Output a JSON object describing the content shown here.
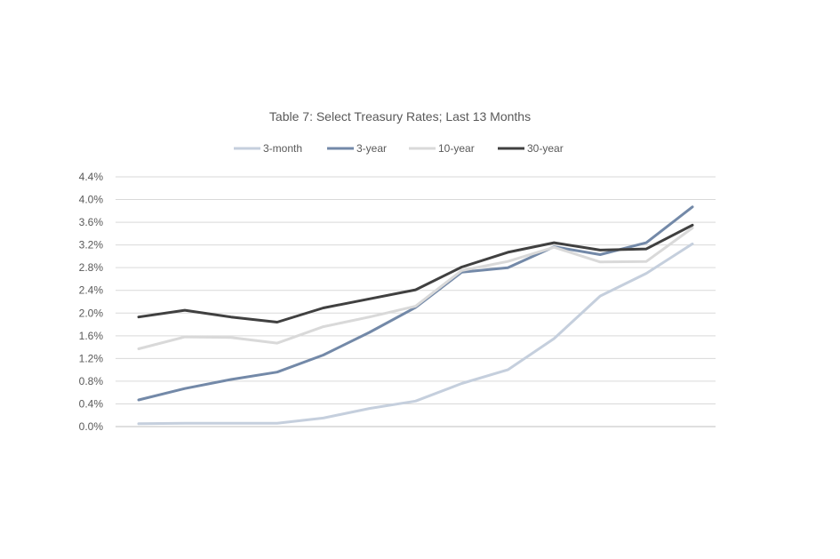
{
  "chart_data": {
    "type": "line",
    "title": "Table 7: Select Treasury Rates; Last 13 Months",
    "xlabel": "",
    "ylabel": "",
    "ylim": [
      0,
      4.4
    ],
    "y_ticks": [
      "0.0%",
      "0.4%",
      "0.8%",
      "1.2%",
      "1.6%",
      "2.0%",
      "2.4%",
      "2.8%",
      "3.2%",
      "3.6%",
      "4.0%",
      "4.4%"
    ],
    "grid": true,
    "legend_position": "top",
    "x": [
      1,
      2,
      3,
      4,
      5,
      6,
      7,
      8,
      9,
      10,
      11,
      12,
      13
    ],
    "series": [
      {
        "name": "3-month",
        "color": "#c5cfdd",
        "values": [
          0.05,
          0.06,
          0.06,
          0.06,
          0.15,
          0.32,
          0.45,
          0.76,
          1.0,
          1.55,
          2.3,
          2.7,
          3.22
        ]
      },
      {
        "name": "3-year",
        "color": "#7389a8",
        "values": [
          0.47,
          0.67,
          0.83,
          0.96,
          1.26,
          1.66,
          2.1,
          2.72,
          2.8,
          3.17,
          3.03,
          3.24,
          3.87
        ]
      },
      {
        "name": "10-year",
        "color": "#d9d9d9",
        "values": [
          1.37,
          1.58,
          1.57,
          1.47,
          1.76,
          1.93,
          2.12,
          2.75,
          2.91,
          3.16,
          2.9,
          2.91,
          3.5
        ]
      },
      {
        "name": "30-year",
        "color": "#404040",
        "values": [
          1.93,
          2.05,
          1.93,
          1.84,
          2.09,
          2.25,
          2.41,
          2.81,
          3.07,
          3.24,
          3.11,
          3.13,
          3.55
        ]
      }
    ]
  }
}
